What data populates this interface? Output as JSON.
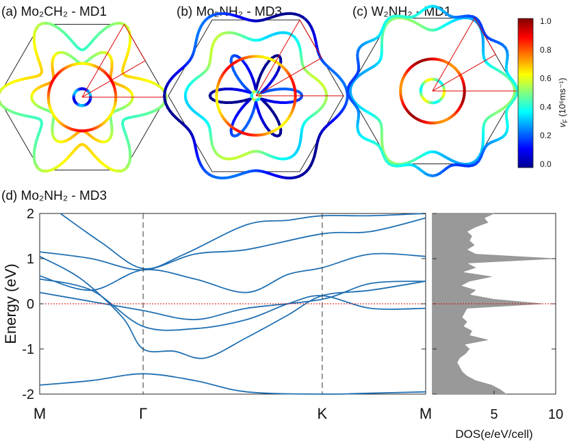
{
  "chart_data": [
    {
      "type": "fermi-surface",
      "panel": "(a)",
      "title": "Mo₂CH₂ - MD1",
      "shape": "hexagon",
      "contours": [
        {
          "name": "small hexagon",
          "velocity": 0.2,
          "r": 0.1
        },
        {
          "name": "star",
          "velocity": 0.6,
          "r": 0.5,
          "lobes": 6,
          "amp": 0.2
        },
        {
          "name": "inner hexagon",
          "velocity": 0.75,
          "r": 0.4
        },
        {
          "name": "flower",
          "velocity": 0.55,
          "r": 0.78,
          "lobes": 6,
          "amp": 0.28
        }
      ]
    },
    {
      "type": "fermi-surface",
      "panel": "(b)",
      "title": "Mo₂NH₂ - MD3",
      "shape": "hexagon",
      "contours": [
        {
          "name": "tiny ring",
          "velocity": 0.45,
          "r": 0.05
        },
        {
          "name": "inner petals",
          "velocity": 0.1,
          "r": 0.3,
          "lobes": 6,
          "amp": 0.75
        },
        {
          "name": "middle hexagon",
          "velocity": 0.75,
          "r": 0.45
        },
        {
          "name": "star",
          "velocity": 0.45,
          "r": 0.72,
          "lobes": 6,
          "amp": 0.12
        },
        {
          "name": "outer",
          "velocity": 0.12,
          "r": 0.95,
          "lobes": 6,
          "amp": 0.1
        }
      ]
    },
    {
      "type": "fermi-surface",
      "panel": "(c)",
      "title": "W₂NH₂ - MD1",
      "shape": "hexagon",
      "contours": [
        {
          "name": "small ring",
          "velocity": 0.5,
          "r": 0.14
        },
        {
          "name": "middle ring",
          "velocity": 0.85,
          "r": 0.38
        },
        {
          "name": "outer arcs",
          "velocity": 0.4,
          "r": 0.85,
          "lobes": 6,
          "amp": 0.15
        },
        {
          "name": "edge arcs",
          "velocity": 0.3,
          "r": 0.96,
          "lobes": 12,
          "amp": 0.05
        }
      ]
    },
    {
      "type": "colorbar",
      "label": "v",
      "label_sub": "F",
      "label_unit": " (10⁶ms⁻¹)",
      "ticks": [
        "1.0",
        "0.8",
        "0.6",
        "0.4",
        "0.2",
        "0.0"
      ],
      "range": [
        0,
        1
      ],
      "colormap": [
        "#00008f",
        "#0000ff",
        "#0080ff",
        "#00ffff",
        "#80ff80",
        "#ffff00",
        "#ff8000",
        "#ff0000",
        "#800000"
      ]
    },
    {
      "type": "line",
      "panel": "(d)",
      "title": "Mo₂NH₂ - MD3",
      "ylabel": "Energy (eV)",
      "xlabel": "",
      "xticks": [
        "M",
        "Γ",
        "K",
        "M"
      ],
      "xtick_positions": [
        0,
        1,
        2.732,
        3.732
      ],
      "yticks": [
        "2",
        "1",
        "0",
        "-1",
        "-2"
      ],
      "ylim": [
        -2,
        2
      ],
      "fermi_level": 0,
      "line_color": "#1f6fb2",
      "bands": [
        [
          [
            0,
            -1.8
          ],
          [
            0.5,
            -1.7
          ],
          [
            1,
            -1.55
          ],
          [
            1.5,
            -1.7
          ],
          [
            2.0,
            -1.95
          ],
          [
            2.732,
            -2.0
          ],
          [
            3.2,
            -1.98
          ],
          [
            3.732,
            -1.95
          ]
        ],
        [
          [
            0,
            1.05
          ],
          [
            0.4,
            0.55
          ],
          [
            0.8,
            -0.3
          ],
          [
            1,
            -1.0
          ],
          [
            1.3,
            -1.05
          ],
          [
            1.6,
            -1.2
          ],
          [
            2.0,
            -0.75
          ],
          [
            2.4,
            -0.25
          ],
          [
            2.732,
            0.18
          ],
          [
            3.2,
            0.3
          ],
          [
            3.732,
            0.5
          ]
        ],
        [
          [
            0,
            0.55
          ],
          [
            0.5,
            0.3
          ],
          [
            1,
            -0.5
          ],
          [
            1.5,
            -0.55
          ],
          [
            2.0,
            -0.35
          ],
          [
            2.4,
            0.0
          ],
          [
            2.732,
            0.18
          ],
          [
            3.2,
            -0.1
          ],
          [
            3.732,
            -0.1
          ]
        ],
        [
          [
            0,
            0.25
          ],
          [
            0.5,
            0.05
          ],
          [
            1,
            -0.15
          ],
          [
            1.5,
            -0.35
          ],
          [
            2.0,
            -0.1
          ],
          [
            2.732,
            0.1
          ],
          [
            3.2,
            0.45
          ],
          [
            3.732,
            0.5
          ]
        ],
        [
          [
            0,
            0.62
          ],
          [
            0.5,
            0.3
          ],
          [
            1,
            0.75
          ],
          [
            1.5,
            0.55
          ],
          [
            2.0,
            0.25
          ],
          [
            2.4,
            0.65
          ],
          [
            2.732,
            0.8
          ],
          [
            3.2,
            1.1
          ],
          [
            3.732,
            1.05
          ]
        ],
        [
          [
            0,
            1.15
          ],
          [
            0.5,
            1.0
          ],
          [
            1,
            0.75
          ],
          [
            1.5,
            1.1
          ],
          [
            2.0,
            1.2
          ],
          [
            2.732,
            1.55
          ],
          [
            3.2,
            1.6
          ],
          [
            3.732,
            1.9
          ]
        ],
        [
          [
            0.2,
            2.0
          ],
          [
            0.6,
            1.35
          ],
          [
            1,
            0.78
          ],
          [
            1.4,
            1.1
          ],
          [
            2.0,
            1.75
          ],
          [
            2.4,
            1.85
          ],
          [
            2.732,
            1.95
          ],
          [
            3.2,
            1.95
          ],
          [
            3.732,
            2.0
          ]
        ]
      ]
    },
    {
      "type": "area",
      "xlabel": "DOS(e/eV/cell)",
      "xticks": [
        "5",
        "10"
      ],
      "xlim": [
        0,
        10
      ],
      "ylim": [
        -2,
        2
      ],
      "fill_color": "#999999",
      "profile": [
        [
          -2.0,
          6.0
        ],
        [
          -1.9,
          5.5
        ],
        [
          -1.8,
          4.8
        ],
        [
          -1.7,
          3.5
        ],
        [
          -1.6,
          2.8
        ],
        [
          -1.5,
          2.4
        ],
        [
          -1.4,
          2.2
        ],
        [
          -1.3,
          2.0
        ],
        [
          -1.2,
          2.2
        ],
        [
          -1.1,
          2.7
        ],
        [
          -1.0,
          3.0
        ],
        [
          -0.9,
          2.6
        ],
        [
          -0.8,
          4.5
        ],
        [
          -0.7,
          3.0
        ],
        [
          -0.6,
          3.2
        ],
        [
          -0.5,
          2.5
        ],
        [
          -0.4,
          2.8
        ],
        [
          -0.3,
          2.4
        ],
        [
          -0.2,
          2.6
        ],
        [
          -0.1,
          2.8
        ],
        [
          0.0,
          9.0
        ],
        [
          0.1,
          5.0
        ],
        [
          0.2,
          3.0
        ],
        [
          0.3,
          3.5
        ],
        [
          0.4,
          2.3
        ],
        [
          0.5,
          3.0
        ],
        [
          0.6,
          4.8
        ],
        [
          0.7,
          2.4
        ],
        [
          0.8,
          3.5
        ],
        [
          0.9,
          2.8
        ],
        [
          1.0,
          10.0
        ],
        [
          1.1,
          3.5
        ],
        [
          1.2,
          2.8
        ],
        [
          1.3,
          3.4
        ],
        [
          1.4,
          3.0
        ],
        [
          1.5,
          3.2
        ],
        [
          1.6,
          2.8
        ],
        [
          1.7,
          3.5
        ],
        [
          1.8,
          4.5
        ],
        [
          1.9,
          4.2
        ],
        [
          2.0,
          5.0
        ]
      ]
    }
  ]
}
